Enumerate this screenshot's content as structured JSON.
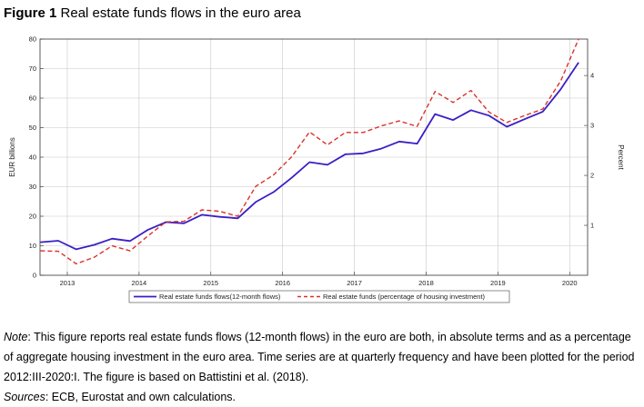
{
  "figure": {
    "label": "Figure 1",
    "title": "Real estate funds flows in the euro area"
  },
  "chart_data": {
    "type": "line",
    "ylabel": "EUR billions",
    "y2label": "Percent",
    "ylim": [
      0,
      80
    ],
    "y2lim": [
      0,
      4.73
    ],
    "yticks": [
      0,
      10,
      20,
      30,
      40,
      50,
      60,
      70,
      80
    ],
    "y2ticks": [
      1,
      2,
      3,
      4
    ],
    "xlim": [
      2012.62,
      2020.25
    ],
    "xticks": [
      2013,
      2014,
      2015,
      2016,
      2017,
      2018,
      2019,
      2020
    ],
    "grid": true,
    "legend_position": "bottom-center",
    "colors": {
      "series1": "#3a1fc4",
      "series2": "#d9322b",
      "grid": "#c8c8c8"
    },
    "series": [
      {
        "name": "Real estate funds flows(12-month flows)",
        "axis": "left",
        "style": "solid",
        "x": [
          2012.625,
          2012.875,
          2013.125,
          2013.375,
          2013.625,
          2013.875,
          2014.125,
          2014.375,
          2014.625,
          2014.875,
          2015.125,
          2015.375,
          2015.625,
          2015.875,
          2016.125,
          2016.375,
          2016.625,
          2016.875,
          2017.125,
          2017.375,
          2017.625,
          2017.875,
          2018.125,
          2018.375,
          2018.625,
          2018.875,
          2019.125,
          2019.375,
          2019.625,
          2019.875,
          2020.125
        ],
        "y": [
          11.2,
          11.7,
          8.8,
          10.3,
          12.4,
          11.6,
          15.4,
          18.0,
          17.6,
          20.5,
          19.8,
          19.3,
          24.8,
          28.2,
          33.0,
          38.3,
          37.4,
          41.0,
          41.3,
          42.9,
          45.3,
          44.6,
          54.6,
          52.6,
          55.9,
          54.1,
          50.3,
          52.9,
          55.4,
          63.0,
          72.1
        ]
      },
      {
        "name": "Real estate funds (percentage of housing investment)",
        "axis": "right",
        "style": "dashed",
        "x": [
          2012.625,
          2012.875,
          2013.125,
          2013.375,
          2013.625,
          2013.875,
          2014.125,
          2014.375,
          2014.625,
          2014.875,
          2015.125,
          2015.375,
          2015.625,
          2015.875,
          2016.125,
          2016.375,
          2016.625,
          2016.875,
          2017.125,
          2017.375,
          2017.625,
          2017.875,
          2018.125,
          2018.375,
          2018.625,
          2018.875,
          2019.125,
          2019.375,
          2019.625,
          2019.875,
          2020.125
        ],
        "y": [
          0.49,
          0.48,
          0.23,
          0.36,
          0.59,
          0.49,
          0.79,
          1.07,
          1.08,
          1.31,
          1.28,
          1.18,
          1.78,
          2.01,
          2.37,
          2.87,
          2.61,
          2.86,
          2.86,
          2.99,
          3.09,
          2.98,
          3.68,
          3.46,
          3.7,
          3.27,
          3.06,
          3.2,
          3.33,
          3.89,
          4.76
        ]
      }
    ]
  },
  "note": {
    "label": "Note",
    "text": ": This figure reports real estate funds flows (12-month flows) in the euro are both, in absolute terms and as a percentage of aggregate housing investment in the euro area. Time series are at quarterly frequency and have been plotted for the period 2012:III-2020:I. The figure is based on Battistini et al. (2018)."
  },
  "sources": {
    "label": "Sources",
    "text": ": ECB, Eurostat and own calculations."
  }
}
